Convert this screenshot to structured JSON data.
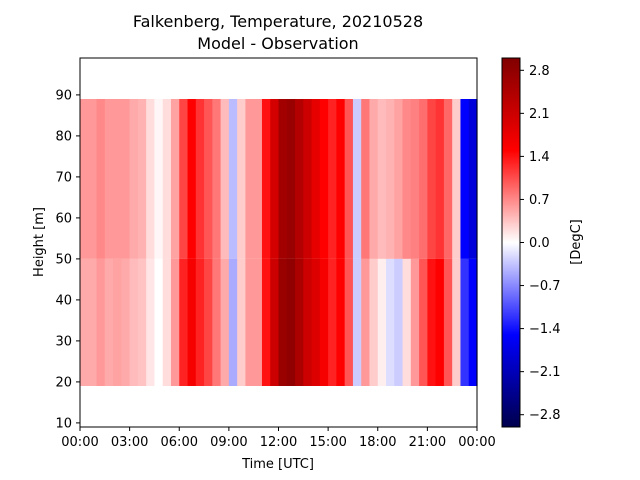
{
  "chart_data": {
    "type": "heatmap",
    "title": "Falkenberg, Temperature, 20210528",
    "subtitle": "Model - Observation",
    "xlabel": "Time [UTC]",
    "ylabel": "Height [m]",
    "colorbar_label": "[DegC]",
    "x_ticks": [
      "00:00",
      "03:00",
      "06:00",
      "09:00",
      "12:00",
      "15:00",
      "18:00",
      "21:00",
      "00:00"
    ],
    "xlim": [
      0,
      24
    ],
    "y_ticks": [
      10,
      20,
      30,
      40,
      50,
      60,
      70,
      80,
      90
    ],
    "ylim": [
      9,
      99
    ],
    "data_height_range": [
      19,
      89
    ],
    "colorbar_ticks": [
      2.8,
      2.1,
      1.4,
      0.7,
      0.0,
      -0.7,
      -1.4,
      -2.1,
      -2.8
    ],
    "color_range": [
      -3.0,
      3.0
    ],
    "colormap": "seismic",
    "grid": false,
    "time_hours": [
      0,
      0.5,
      1,
      1.5,
      2,
      2.5,
      3,
      3.5,
      4,
      4.5,
      5,
      5.5,
      6,
      6.5,
      7,
      7.5,
      8,
      8.5,
      9,
      9.5,
      10,
      10.5,
      11,
      11.5,
      12,
      12.5,
      13,
      13.5,
      14,
      14.5,
      15,
      15.5,
      16,
      16.5,
      17,
      17.5,
      18,
      18.5,
      19,
      19.5,
      20,
      20.5,
      21,
      21.5,
      22,
      22.5,
      23,
      23.5
    ],
    "difference_upper_levels_degC": [
      0.6,
      0.6,
      0.7,
      0.6,
      0.6,
      0.6,
      0.5,
      0.45,
      0.2,
      0.05,
      0.2,
      0.55,
      1.1,
      1.5,
      1.2,
      1.0,
      0.8,
      0.4,
      -0.4,
      0.3,
      0.6,
      0.6,
      1.4,
      2.0,
      2.6,
      2.7,
      2.4,
      2.1,
      1.8,
      1.5,
      1.3,
      1.5,
      1.0,
      -0.3,
      0.8,
      0.5,
      0.4,
      0.45,
      0.55,
      0.7,
      0.75,
      0.85,
      1.1,
      1.2,
      0.9,
      0.3,
      -1.5,
      -1.8
    ],
    "difference_lower_levels_degC": [
      0.5,
      0.5,
      0.6,
      0.5,
      0.55,
      0.5,
      0.4,
      0.35,
      0.15,
      0.0,
      0.2,
      0.6,
      1.3,
      1.6,
      1.3,
      1.1,
      0.8,
      0.5,
      -0.5,
      0.3,
      0.6,
      0.6,
      1.4,
      2.1,
      2.7,
      2.8,
      2.5,
      2.1,
      1.9,
      1.6,
      1.3,
      1.5,
      1.0,
      -0.3,
      0.6,
      0.3,
      0.1,
      -0.2,
      -0.3,
      0.2,
      0.6,
      1.0,
      1.4,
      1.5,
      1.0,
      0.3,
      -1.2,
      -1.5
    ]
  }
}
